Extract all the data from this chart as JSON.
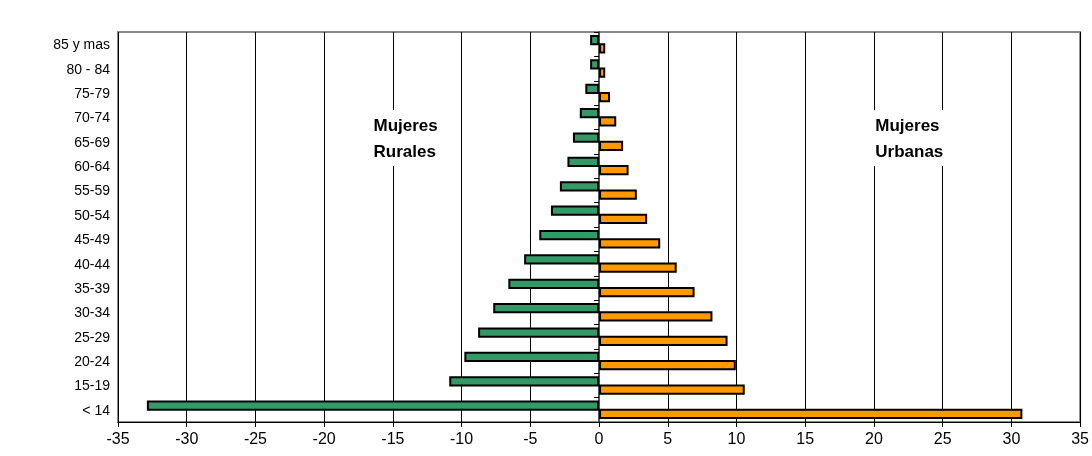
{
  "chart_data": {
    "type": "bar",
    "orientation": "horizontal",
    "categories": [
      "85 y mas",
      "80 - 84",
      "75-79",
      "70-74",
      "65-69",
      "60-64",
      "55-59",
      "50-54",
      "45-49",
      "40-44",
      "35-39",
      "30-34",
      "25-29",
      "20-24",
      "15-19",
      "< 14"
    ],
    "series": [
      {
        "color": "#339966",
        "values": [
          -0.65,
          -0.65,
          -1.0,
          -1.4,
          -1.9,
          -2.3,
          -2.85,
          -3.5,
          -4.35,
          -5.45,
          -6.6,
          -7.7,
          -8.8,
          -9.8,
          -10.9,
          -32.9
        ]
      },
      {
        "color": "#ff9900",
        "values": [
          0.45,
          0.45,
          0.8,
          1.25,
          1.75,
          2.15,
          2.75,
          3.5,
          4.45,
          5.65,
          6.95,
          8.25,
          9.35,
          9.95,
          10.6,
          30.8
        ]
      }
    ],
    "xlim": [
      -35,
      35
    ],
    "xticks": [
      -35,
      -30,
      -25,
      -20,
      -15,
      -10,
      -5,
      0,
      5,
      10,
      15,
      20,
      25,
      30,
      35
    ],
    "grid": "x",
    "annotations": [
      "Mujeres\nRurales",
      "Mujeres\nUrbanas"
    ]
  }
}
